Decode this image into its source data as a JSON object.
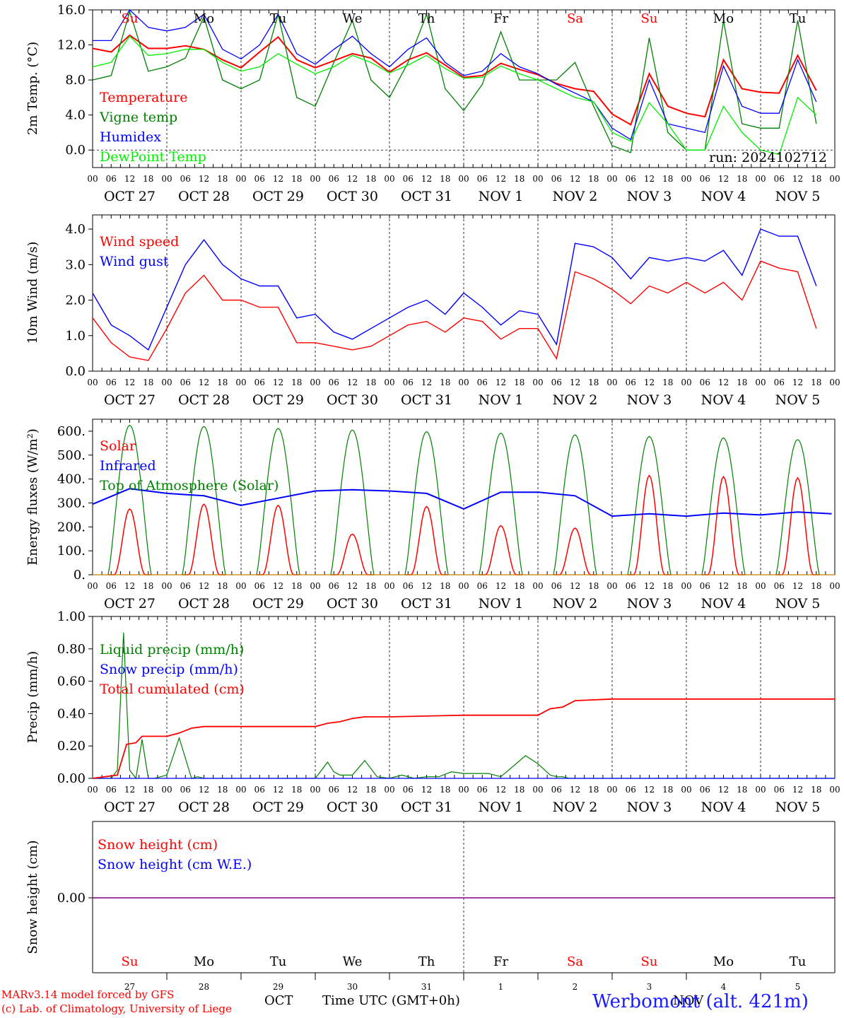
{
  "chart_data": [
    {
      "type": "line",
      "ylabel": "2m Temp. (°C)",
      "yticks": [
        "16.0",
        "12.0",
        "8.0",
        "4.0",
        "0.0"
      ],
      "ylim": [
        -2,
        16
      ],
      "x_unit": "hours since Oct 27 00 UTC",
      "series": [
        {
          "name": "Temperature",
          "color": "#ff0000",
          "x": [
            0,
            6,
            12,
            18,
            24,
            30,
            36,
            42,
            48,
            54,
            60,
            66,
            72,
            78,
            84,
            90,
            96,
            102,
            108,
            114,
            120,
            126,
            132,
            138,
            144,
            150,
            156,
            162,
            168,
            174,
            180,
            186,
            192,
            198,
            204,
            210,
            216,
            222,
            228,
            234
          ],
          "values": [
            11.6,
            11.2,
            13.1,
            11.6,
            11.6,
            11.9,
            11.5,
            10.3,
            9.4,
            11.2,
            12.9,
            10.3,
            9.4,
            10.2,
            11.0,
            10.5,
            8.9,
            10.3,
            11.1,
            9.7,
            8.3,
            8.5,
            9.9,
            9.2,
            8.6,
            7.6,
            7.0,
            6.7,
            4.1,
            2.9,
            8.7,
            5.0,
            4.2,
            3.8,
            10.3,
            7.0,
            6.6,
            6.5,
            10.8,
            6.8
          ]
        },
        {
          "name": "Vigne temp",
          "color": "#008000",
          "x": [
            0,
            6,
            12,
            18,
            24,
            30,
            36,
            42,
            48,
            54,
            60,
            66,
            72,
            78,
            84,
            90,
            96,
            102,
            108,
            114,
            120,
            126,
            132,
            138,
            144,
            150,
            156,
            162,
            168,
            174,
            180,
            186,
            192,
            198,
            204,
            210,
            216,
            222,
            228,
            234
          ],
          "values": [
            8.0,
            8.5,
            15.8,
            9.0,
            9.5,
            10.5,
            15.2,
            8.0,
            7.0,
            8.0,
            15.5,
            6.0,
            5.0,
            10.0,
            14.8,
            8.0,
            6.0,
            10.0,
            15.5,
            7.0,
            4.5,
            7.5,
            13.5,
            8.0,
            8.0,
            8.0,
            10.0,
            5.0,
            0.5,
            -0.3,
            12.8,
            2.0,
            0.0,
            0.0,
            14.8,
            3.0,
            2.5,
            2.5,
            14.8,
            3.0
          ]
        },
        {
          "name": "Humidex",
          "color": "#0000ff",
          "x": [
            0,
            6,
            12,
            18,
            24,
            30,
            36,
            42,
            48,
            54,
            60,
            66,
            72,
            78,
            84,
            90,
            96,
            102,
            108,
            114,
            120,
            126,
            132,
            138,
            144,
            150,
            156,
            162,
            168,
            174,
            180,
            186,
            192,
            198,
            204,
            210,
            216,
            222,
            228,
            234
          ],
          "values": [
            12.5,
            12.5,
            16.0,
            14.0,
            13.6,
            14.0,
            15.5,
            11.5,
            10.4,
            12.0,
            15.5,
            11.0,
            9.8,
            11.5,
            13.0,
            11.0,
            9.5,
            11.5,
            12.8,
            10.0,
            8.5,
            9.0,
            11.0,
            9.5,
            8.7,
            7.5,
            6.5,
            5.5,
            2.5,
            1.2,
            8.0,
            3.0,
            2.5,
            2.0,
            9.6,
            5.0,
            4.2,
            4.2,
            10.3,
            5.5
          ]
        },
        {
          "name": "DewPoint Temp",
          "color": "#00ee00",
          "x": [
            0,
            6,
            12,
            18,
            24,
            30,
            36,
            42,
            48,
            54,
            60,
            66,
            72,
            78,
            84,
            90,
            96,
            102,
            108,
            114,
            120,
            126,
            132,
            138,
            144,
            150,
            156,
            162,
            168,
            174,
            180,
            186,
            192,
            198,
            204,
            210,
            216,
            222,
            228,
            234
          ],
          "values": [
            9.5,
            10.0,
            13.0,
            10.8,
            11.0,
            11.5,
            11.5,
            10.0,
            9.0,
            9.5,
            11.0,
            9.8,
            8.7,
            9.5,
            10.8,
            10.0,
            8.8,
            9.7,
            10.8,
            9.3,
            8.2,
            8.3,
            9.6,
            8.7,
            8.0,
            7.0,
            6.0,
            5.5,
            2.0,
            1.0,
            5.4,
            3.0,
            0.0,
            0.0,
            5.0,
            2.0,
            0.0,
            -0.5,
            6.0,
            4.0
          ]
        }
      ],
      "annotation": "run: 2024102712"
    },
    {
      "type": "line",
      "ylabel": "10m Wind (m/s)",
      "yticks": [
        "4.0",
        "3.0",
        "2.0",
        "1.0",
        "0.0"
      ],
      "ylim": [
        0,
        4.4
      ],
      "series": [
        {
          "name": "Wind speed",
          "color": "#ff0000",
          "x": [
            0,
            6,
            12,
            18,
            24,
            30,
            36,
            42,
            48,
            54,
            60,
            66,
            72,
            78,
            84,
            90,
            96,
            102,
            108,
            114,
            120,
            126,
            132,
            138,
            144,
            150,
            156,
            162,
            168,
            174,
            180,
            186,
            192,
            198,
            204,
            210,
            216,
            222,
            228,
            234
          ],
          "values": [
            1.5,
            0.8,
            0.4,
            0.3,
            1.2,
            2.2,
            2.7,
            2.0,
            2.0,
            1.8,
            1.8,
            0.8,
            0.8,
            0.7,
            0.6,
            0.7,
            1.0,
            1.3,
            1.4,
            1.1,
            1.5,
            1.4,
            0.9,
            1.2,
            1.2,
            0.35,
            2.8,
            2.6,
            2.3,
            1.9,
            2.4,
            2.2,
            2.5,
            2.2,
            2.5,
            2.0,
            3.1,
            2.9,
            2.8,
            1.2
          ]
        },
        {
          "name": "Wind gust",
          "color": "#0000ff",
          "x": [
            0,
            6,
            12,
            18,
            24,
            30,
            36,
            42,
            48,
            54,
            60,
            66,
            72,
            78,
            84,
            90,
            96,
            102,
            108,
            114,
            120,
            126,
            132,
            138,
            144,
            150,
            156,
            162,
            168,
            174,
            180,
            186,
            192,
            198,
            204,
            210,
            216,
            222,
            228,
            234
          ],
          "values": [
            2.2,
            1.3,
            1.0,
            0.6,
            1.8,
            3.0,
            3.7,
            3.0,
            2.6,
            2.4,
            2.4,
            1.5,
            1.6,
            1.1,
            0.9,
            1.2,
            1.5,
            1.8,
            2.0,
            1.6,
            2.2,
            1.8,
            1.3,
            1.7,
            1.6,
            0.75,
            3.6,
            3.5,
            3.2,
            2.6,
            3.2,
            3.1,
            3.2,
            3.1,
            3.4,
            2.7,
            4.0,
            3.8,
            3.8,
            2.4
          ]
        }
      ]
    },
    {
      "type": "line",
      "ylabel": "Energy fluxes (W/m²)",
      "yticks": [
        "600.",
        "500.",
        "400.",
        "300.",
        "200.",
        "100.",
        "0."
      ],
      "ylim": [
        0,
        650
      ],
      "series": [
        {
          "name": "Solar",
          "color": "#ff0000",
          "peaks": [
            275,
            295,
            290,
            170,
            285,
            205,
            195,
            415,
            410,
            405
          ]
        },
        {
          "name": "Infrared",
          "color": "#0000ff",
          "x": [
            0,
            12,
            24,
            36,
            48,
            60,
            72,
            84,
            96,
            108,
            120,
            132,
            144,
            156,
            168,
            180,
            192,
            204,
            216,
            228,
            239
          ],
          "values": [
            295,
            360,
            340,
            330,
            290,
            320,
            350,
            355,
            350,
            340,
            275,
            345,
            345,
            330,
            245,
            255,
            245,
            258,
            250,
            262,
            255
          ]
        },
        {
          "name": "Top of Atmosphere (Solar)",
          "color": "#008000",
          "peaks": [
            625,
            620,
            612,
            605,
            598,
            592,
            585,
            578,
            572,
            565
          ]
        }
      ]
    },
    {
      "type": "line",
      "ylabel": "Precip (mm/h)",
      "yticks": [
        "1.00",
        "0.80",
        "0.60",
        "0.40",
        "0.20",
        "0.00"
      ],
      "ylim": [
        0,
        1.0
      ],
      "series": [
        {
          "name": "Liquid precip (mm/h)",
          "color": "#008000",
          "x": [
            0,
            6,
            8,
            10,
            12,
            14,
            16,
            18,
            20,
            24,
            28,
            32,
            34,
            36,
            40,
            48,
            72,
            76,
            78,
            80,
            84,
            88,
            92,
            96,
            100,
            104,
            108,
            112,
            116,
            120,
            128,
            132,
            140,
            144,
            148,
            150,
            152,
            154,
            156,
            160,
            168,
            240
          ],
          "values": [
            0,
            0,
            0.05,
            0.9,
            0.05,
            0,
            0.24,
            0,
            0,
            0.02,
            0.25,
            0,
            0.01,
            0,
            0,
            0,
            0,
            0.1,
            0.04,
            0.02,
            0.02,
            0.11,
            0.01,
            0,
            0.02,
            0,
            0.01,
            0.01,
            0.04,
            0.03,
            0.03,
            0.01,
            0.14,
            0.09,
            0.02,
            0.01,
            0.01,
            0,
            0,
            0,
            0,
            0
          ]
        },
        {
          "name": "Snow precip (mm/h)",
          "color": "#0000ff",
          "x": [
            0,
            240
          ],
          "values": [
            0,
            0
          ]
        },
        {
          "name": "Total cumulated (cm)",
          "color": "#ff0000",
          "x": [
            0,
            8,
            11,
            14,
            16,
            18,
            20,
            24,
            28,
            32,
            36,
            40,
            48,
            72,
            76,
            80,
            84,
            88,
            92,
            96,
            120,
            144,
            148,
            152,
            156,
            168,
            240
          ],
          "values": [
            0,
            0.02,
            0.21,
            0.22,
            0.26,
            0.26,
            0.26,
            0.26,
            0.28,
            0.31,
            0.32,
            0.32,
            0.32,
            0.32,
            0.34,
            0.35,
            0.37,
            0.38,
            0.38,
            0.38,
            0.39,
            0.39,
            0.43,
            0.44,
            0.48,
            0.49,
            0.49
          ]
        }
      ]
    },
    {
      "type": "line",
      "ylabel": "Snow height (cm)",
      "yticks": [
        "0.00"
      ],
      "series": [
        {
          "name": "Snow height (cm)",
          "color": "#ff0000",
          "x": [
            0,
            240
          ],
          "values": [
            0,
            0
          ]
        },
        {
          "name": "Snow height (cm W.E.)",
          "color": "#0000ff",
          "x": [
            0,
            240
          ],
          "values": [
            0,
            0
          ]
        }
      ]
    }
  ],
  "days": [
    "Su",
    "Mo",
    "Tu",
    "We",
    "Th",
    "Fr",
    "Sa",
    "Su",
    "Mo",
    "Tu"
  ],
  "weekend_color": "#ff0000",
  "dates": [
    "OCT 27",
    "OCT 28",
    "OCT 29",
    "OCT 30",
    "OCT 31",
    "NOV  1",
    "NOV  2",
    "NOV  3",
    "NOV  4",
    "NOV  5"
  ],
  "hour_ticks": [
    "00",
    "06",
    "12",
    "18"
  ],
  "day_numbers": [
    "27",
    "28",
    "29",
    "30",
    "31",
    "1",
    "2",
    "3",
    "4",
    "5"
  ],
  "footer": {
    "model": "MARv3.14 model forced by GFS",
    "credit": "(c) Lab. of Climatology, University of Liege",
    "month_oct": "OCT",
    "time_label": "Time UTC (GMT+0h)",
    "month_nov": "NOV",
    "station": "Werbomont (alt. 421m)"
  }
}
